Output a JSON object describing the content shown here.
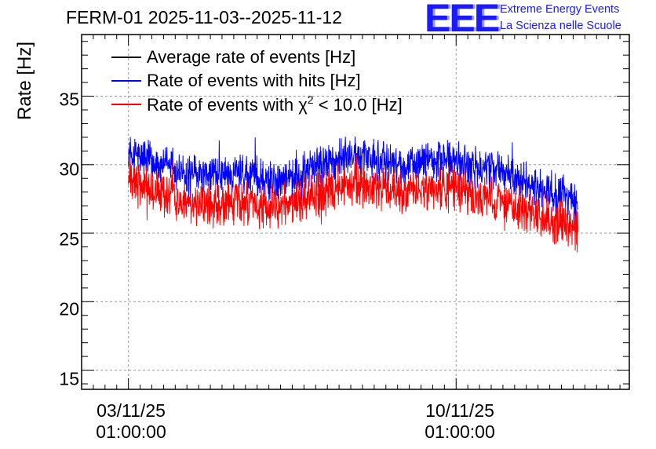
{
  "title": "FERM-01 2025-11-03--2025-11-12",
  "logo": {
    "text": "EEE",
    "line1": "Extreme Energy Events",
    "line2": "La Scienza nelle Scuole",
    "color": "#1a1aff"
  },
  "chart_data": {
    "type": "line",
    "title": "FERM-01 2025-11-03--2025-11-12",
    "xlabel": "",
    "ylabel": "Rate [Hz]",
    "ylim": [
      13.6,
      39.5
    ],
    "grid": true,
    "legend_position": "top-left",
    "x_ticks": [
      {
        "day": 0,
        "line1": "03/11/25",
        "line2": "01:00:00"
      },
      {
        "day": 7,
        "line1": "10/11/25",
        "line2": "01:00:00"
      }
    ],
    "y_ticks": [
      "15",
      "20",
      "25",
      "30",
      "35"
    ],
    "y_tick_values": [
      15,
      20,
      25,
      30,
      35
    ],
    "x_range_days": [
      -1.0,
      10.7
    ],
    "data_range_days": [
      0.0,
      9.6
    ],
    "legend": [
      {
        "label_main": "Average rate of events [Hz]",
        "color": "#000000"
      },
      {
        "label_main": "Rate of events with hits [Hz]",
        "color": "#0000ff"
      },
      {
        "label_pre": "Rate of events with ",
        "label_sym": "χ",
        "label_sup": "2",
        "label_post": " < 10.0 [Hz]",
        "color": "#ff0000"
      }
    ],
    "series": [
      {
        "name": "Rate of events with hits [Hz]",
        "color": "#0000ff",
        "x_days": [
          0,
          0.5,
          1,
          1.5,
          2,
          2.5,
          3,
          3.5,
          4,
          4.5,
          5,
          5.5,
          6,
          6.5,
          7,
          7.5,
          8,
          8.5,
          9,
          9.6
        ],
        "values": [
          30.8,
          30.1,
          29.6,
          29.0,
          29.2,
          29.3,
          28.8,
          29.2,
          29.8,
          30.4,
          30.6,
          30.2,
          30.0,
          30.4,
          30.3,
          29.7,
          29.5,
          28.8,
          28.0,
          27.4
        ],
        "noise": 1.0
      },
      {
        "name": "Rate of events with χ² < 10.0 [Hz]",
        "color": "#ff0000",
        "x_days": [
          0,
          0.5,
          1,
          1.5,
          2,
          2.5,
          3,
          3.5,
          4,
          4.5,
          5,
          5.5,
          6,
          6.5,
          7,
          7.5,
          8,
          8.5,
          9,
          9.6
        ],
        "values": [
          28.9,
          28.1,
          27.5,
          27.0,
          27.1,
          27.3,
          26.9,
          27.2,
          27.7,
          28.3,
          28.6,
          28.2,
          28.0,
          28.4,
          28.2,
          27.6,
          27.3,
          26.6,
          25.9,
          25.3
        ],
        "noise": 1.1
      }
    ]
  }
}
